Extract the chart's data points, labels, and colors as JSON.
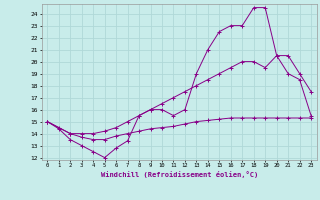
{
  "xlabel": "Windchill (Refroidissement éolien,°C)",
  "background_color": "#c8ecea",
  "line_color": "#880088",
  "grid_color": "#b0d8d8",
  "x_ticks": [
    0,
    1,
    2,
    3,
    4,
    5,
    6,
    7,
    8,
    9,
    10,
    11,
    12,
    13,
    14,
    15,
    16,
    17,
    18,
    19,
    20,
    21,
    22,
    23
  ],
  "y_ticks": [
    12,
    13,
    14,
    15,
    16,
    17,
    18,
    19,
    20,
    21,
    22,
    23,
    24
  ],
  "xlim": [
    -0.5,
    23.5
  ],
  "ylim": [
    11.8,
    24.8
  ],
  "line1_x": [
    0,
    1,
    2,
    3,
    4,
    5,
    6,
    7,
    8,
    9,
    10,
    11,
    12,
    13,
    14,
    15,
    16,
    17,
    18,
    19,
    20,
    21,
    22,
    23
  ],
  "line1_y": [
    15.0,
    14.4,
    13.5,
    13.0,
    12.5,
    12.0,
    12.8,
    13.4,
    15.5,
    16.0,
    16.0,
    15.5,
    16.0,
    19.0,
    21.0,
    22.5,
    23.0,
    23.0,
    24.5,
    24.5,
    20.5,
    20.5,
    19.0,
    17.5
  ],
  "line2_x": [
    0,
    2,
    3,
    4,
    5,
    6,
    7,
    8,
    9,
    10,
    11,
    12,
    13,
    14,
    15,
    16,
    17,
    18,
    19,
    20,
    21,
    22,
    23
  ],
  "line2_y": [
    15.0,
    14.0,
    14.0,
    14.0,
    14.2,
    14.5,
    15.0,
    15.5,
    16.0,
    16.5,
    17.0,
    17.5,
    18.0,
    18.5,
    19.0,
    19.5,
    20.0,
    20.0,
    19.5,
    20.5,
    19.0,
    18.5,
    15.5
  ],
  "line3_x": [
    0,
    1,
    2,
    3,
    4,
    5,
    6,
    7,
    8,
    9,
    10,
    11,
    12,
    13,
    14,
    15,
    16,
    17,
    18,
    19,
    20,
    21,
    22,
    23
  ],
  "line3_y": [
    15.0,
    14.5,
    14.0,
    13.7,
    13.5,
    13.5,
    13.8,
    14.0,
    14.2,
    14.4,
    14.5,
    14.6,
    14.8,
    15.0,
    15.1,
    15.2,
    15.3,
    15.3,
    15.3,
    15.3,
    15.3,
    15.3,
    15.3,
    15.3
  ]
}
